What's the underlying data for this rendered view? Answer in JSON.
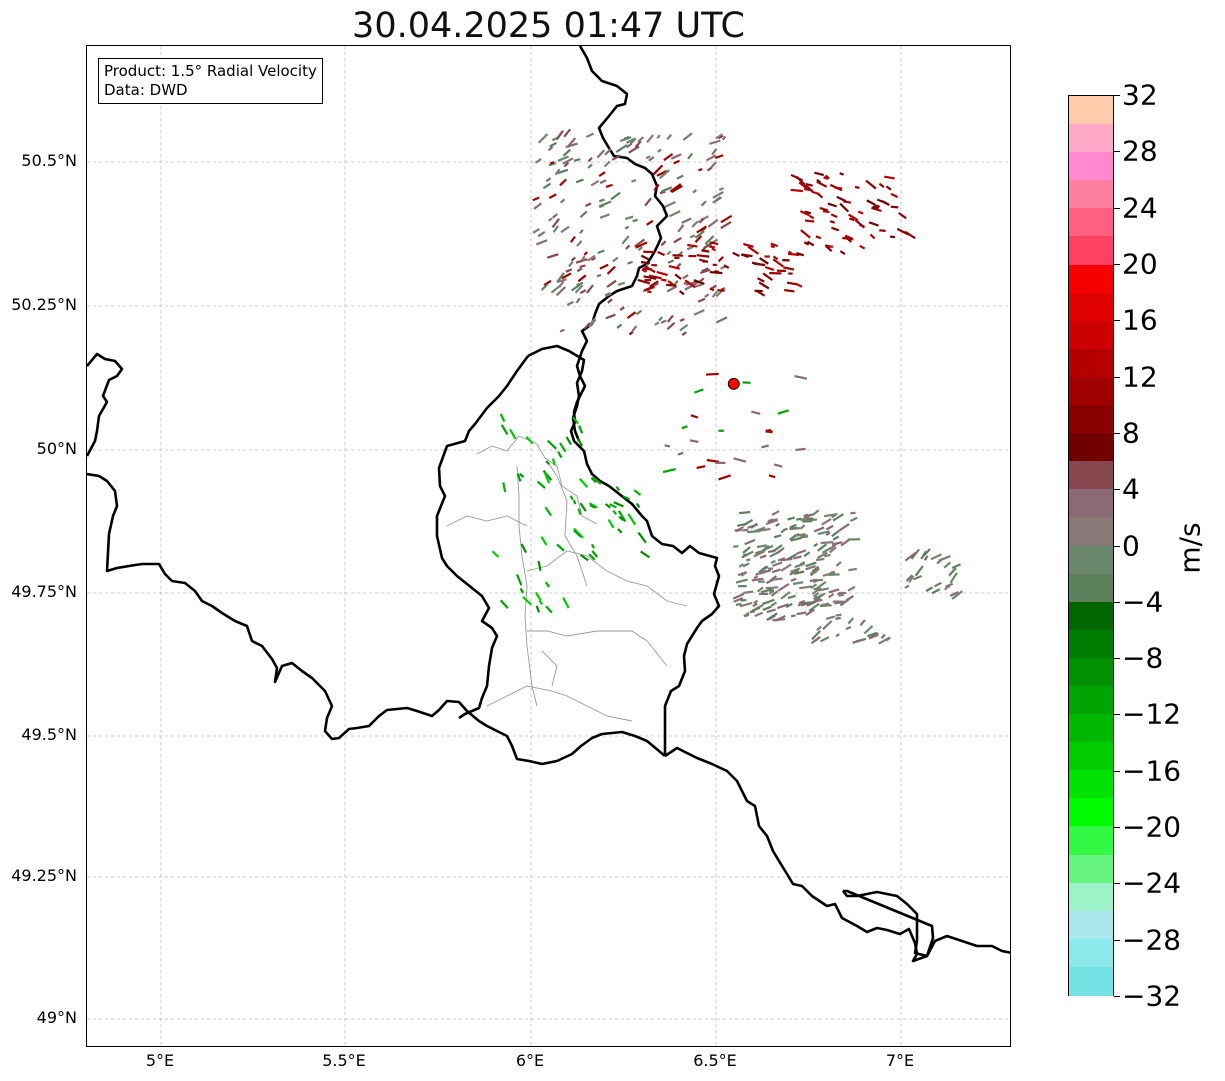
{
  "title": "30.04.2025 01:47 UTC",
  "info_box": {
    "line1": "Product: 1.5° Radial Velocity",
    "line2": "Data: DWD"
  },
  "map": {
    "lon_range": [
      4.8,
      7.3
    ],
    "lat_range": [
      48.95,
      50.7
    ],
    "x_ticks": [
      "5°E",
      "5.5°E",
      "6°E",
      "6.5°E",
      "7°E"
    ],
    "y_ticks": [
      "50.5°N",
      "50.25°N",
      "50°N",
      "49.75°N",
      "49.5°N",
      "49.25°N",
      "49°N"
    ],
    "radar_site": {
      "lon": 6.548,
      "lat": 50.11,
      "color": "#ff0000"
    }
  },
  "colorbar": {
    "label": "m/s",
    "min": -32,
    "max": 32,
    "ticks": [
      "32",
      "28",
      "24",
      "20",
      "16",
      "12",
      "8",
      "4",
      "0",
      "−4",
      "−8",
      "−12",
      "−16",
      "−20",
      "−24",
      "−28",
      "−32"
    ],
    "colors_bottom_to_top": [
      "#73e3e6",
      "#8deaec",
      "#a9e9ee",
      "#9ef2c8",
      "#66f57f",
      "#33f944",
      "#00fb00",
      "#00e200",
      "#00cc00",
      "#00b800",
      "#00a400",
      "#009000",
      "#007c00",
      "#006600",
      "#5c7f5c",
      "#6b876b",
      "#887878",
      "#8a6a74",
      "#86474e",
      "#720000",
      "#8a0000",
      "#a00000",
      "#b60000",
      "#cc0000",
      "#e00000",
      "#f60000",
      "#ff4060",
      "#ff6080",
      "#ff7fa0",
      "#ff88d0",
      "#ffa8c8",
      "#ffcbaa"
    ]
  }
}
